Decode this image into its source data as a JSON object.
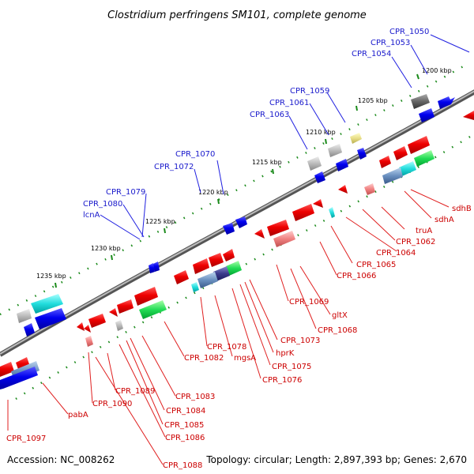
{
  "title": "Clostridium perfringens SM101, complete genome",
  "footer": {
    "accession": "Accession: NC_008262",
    "summary": "Topology: circular; Length: 2,897,393 bp; Genes: 2,670"
  },
  "scale_labels": [
    "1200 kbp",
    "1205 kbp",
    "1210 kbp",
    "1215 kbp",
    "1220 kbp",
    "1225 kbp",
    "1230 kbp",
    "1235 kbp"
  ],
  "upper_labels": [
    "CPR_1050",
    "CPR_1053",
    "CPR_1054",
    "CPR_1059",
    "CPR_1061",
    "CPR_1063",
    "CPR_1070",
    "CPR_1072",
    "CPR_1079",
    "CPR_1080",
    "lcnA"
  ],
  "lower_labels": [
    "sdhB",
    "sdhA",
    "truA",
    "CPR_1062",
    "CPR_1064",
    "CPR_1065",
    "CPR_1066",
    "CPR_1069",
    "gltX",
    "CPR_1068",
    "CPR_1073",
    "hprK",
    "CPR_1075",
    "CPR_1076",
    "mgsA",
    "CPR_1078",
    "CPR_1082",
    "CPR_1083",
    "CPR_1084",
    "CPR_1085",
    "CPR_1086",
    "CPR_1088",
    "CPR_1089",
    "CPR_1090",
    "pabA",
    "CPR_1097"
  ],
  "colors": {
    "forward_strand": "#0000ee",
    "reverse_strand": "#ee0000",
    "backbone": "#808080",
    "tick": "#1a8a1a",
    "label_blue": "#1a1acc",
    "label_red": "#cc0000"
  }
}
